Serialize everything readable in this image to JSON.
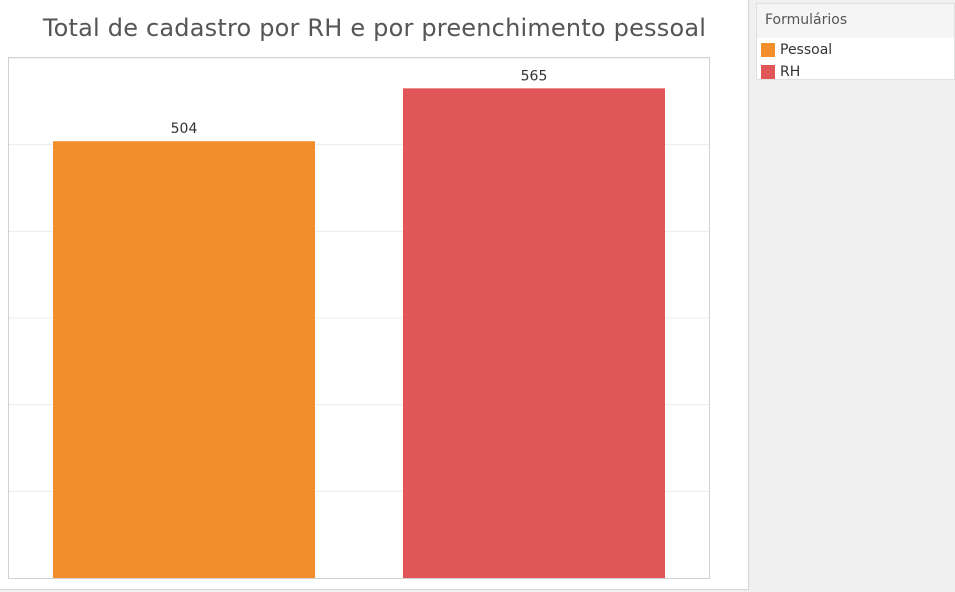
{
  "chart_data": {
    "type": "bar",
    "title": "Total de cadastro por RH e por preenchimento pessoal",
    "categories": [
      "Pessoal",
      "RH"
    ],
    "values": [
      504,
      565
    ],
    "colors": [
      "#f28e2b",
      "#e15759"
    ],
    "ylim": [
      0,
      600
    ],
    "grid": true,
    "legend": {
      "title": "Formulários",
      "placement": "top-right",
      "items": [
        {
          "label": "Pessoal",
          "color": "#f28e2b"
        },
        {
          "label": "RH",
          "color": "#e15759"
        }
      ]
    }
  }
}
